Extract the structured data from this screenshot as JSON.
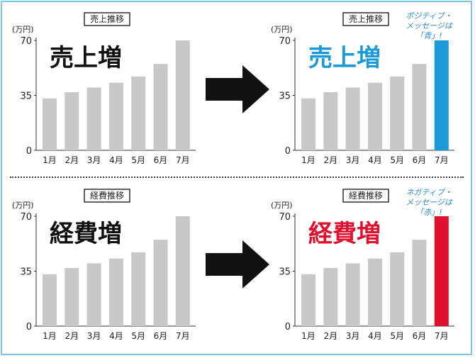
{
  "unit": "(万円)",
  "colors": {
    "bar": "#c8c8c8",
    "positive": "#1a9ad9",
    "negative": "#e0102f",
    "text": "#222222",
    "frame": "#7fc4e4"
  },
  "charts": [
    {
      "title": "売上推移",
      "headline": "売上増",
      "highlight": null,
      "note": []
    },
    {
      "title": "売上推移",
      "headline": "売上増",
      "highlight": "positive",
      "note": [
        "ポジティブ・",
        "メッセージは",
        "「青」!"
      ]
    },
    {
      "title": "経費推移",
      "headline": "経費増",
      "highlight": null,
      "note": []
    },
    {
      "title": "経費推移",
      "headline": "経費増",
      "highlight": "negative",
      "note": [
        "ネガティブ・",
        "メッセージは",
        "「赤」!"
      ]
    }
  ],
  "chart_data": [
    {
      "type": "bar",
      "title": "売上推移",
      "ylabel": "(万円)",
      "categories": [
        "1月",
        "2月",
        "3月",
        "4月",
        "5月",
        "6月",
        "7月"
      ],
      "values": [
        33,
        37,
        40,
        43,
        47,
        55,
        70
      ],
      "ylim": [
        0,
        70
      ],
      "yticks": [
        0,
        35,
        70
      ]
    },
    {
      "type": "bar",
      "title": "売上推移",
      "ylabel": "(万円)",
      "categories": [
        "1月",
        "2月",
        "3月",
        "4月",
        "5月",
        "6月",
        "7月"
      ],
      "values": [
        33,
        37,
        40,
        43,
        47,
        55,
        70
      ],
      "ylim": [
        0,
        70
      ],
      "yticks": [
        0,
        35,
        70
      ]
    },
    {
      "type": "bar",
      "title": "経費推移",
      "ylabel": "(万円)",
      "categories": [
        "1月",
        "2月",
        "3月",
        "4月",
        "5月",
        "6月",
        "7月"
      ],
      "values": [
        33,
        37,
        40,
        43,
        47,
        55,
        70
      ],
      "ylim": [
        0,
        70
      ],
      "yticks": [
        0,
        35,
        70
      ]
    },
    {
      "type": "bar",
      "title": "経費推移",
      "ylabel": "(万円)",
      "categories": [
        "1月",
        "2月",
        "3月",
        "4月",
        "5月",
        "6月",
        "7月"
      ],
      "values": [
        33,
        37,
        40,
        43,
        47,
        55,
        70
      ],
      "ylim": [
        0,
        70
      ],
      "yticks": [
        0,
        35,
        70
      ]
    }
  ]
}
